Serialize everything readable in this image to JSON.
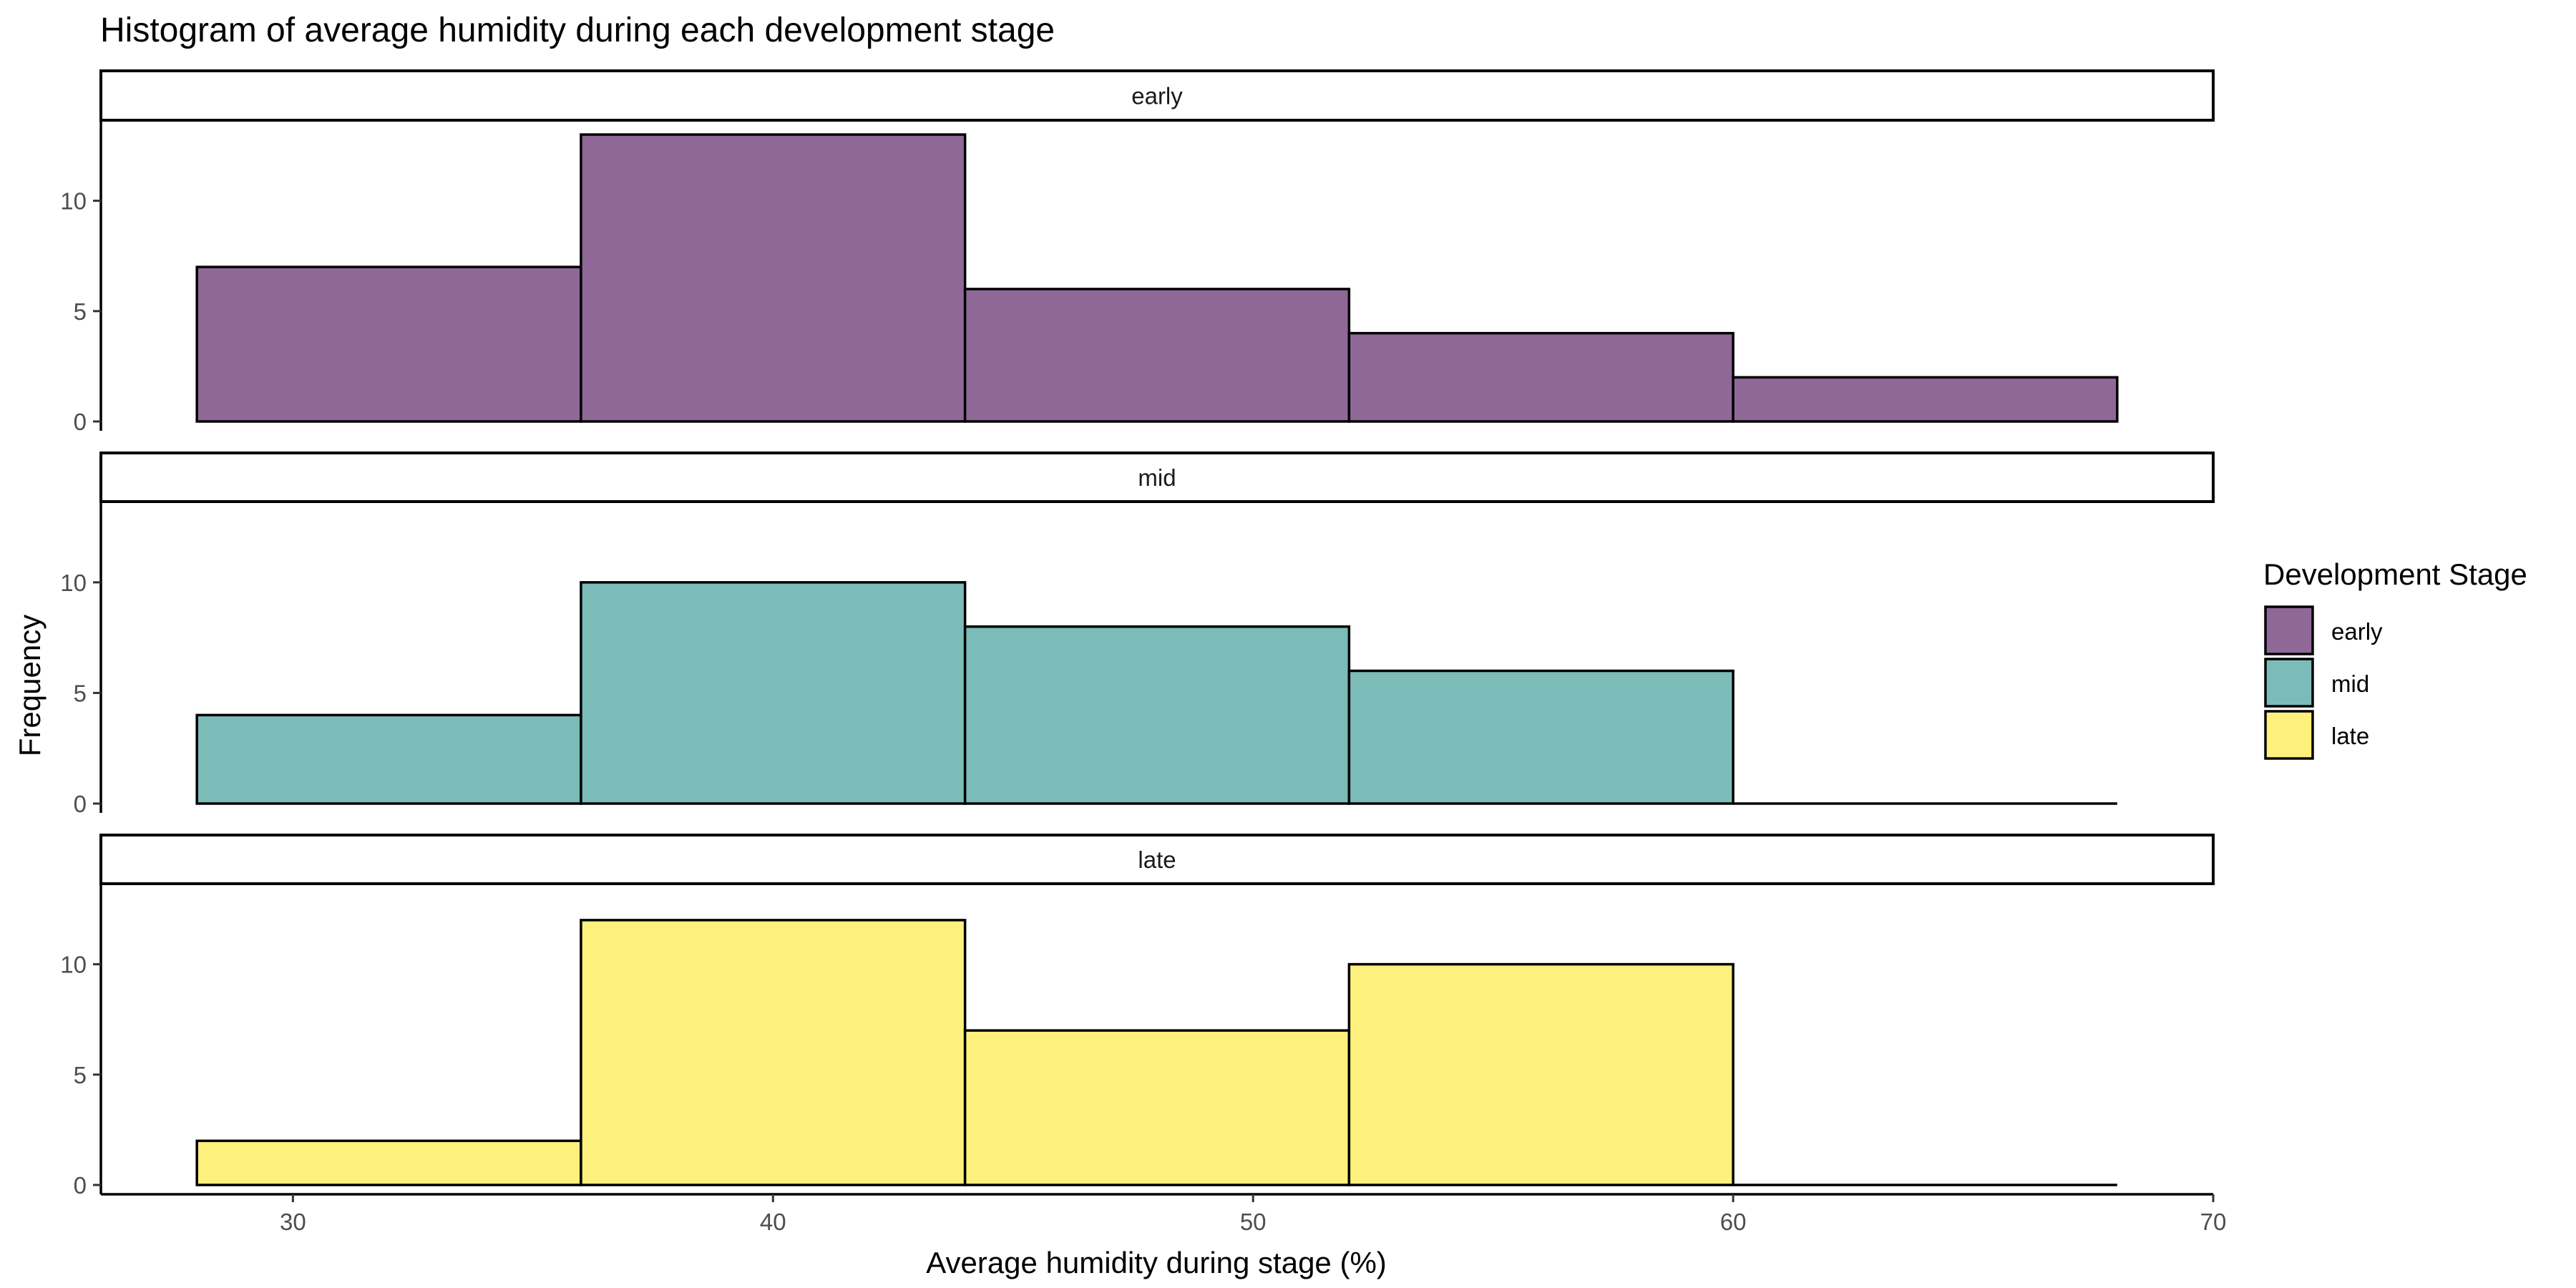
{
  "chart_data": {
    "type": "bar",
    "title": "Histogram of average humidity during each development stage",
    "xlabel": "Average humidity during stage (%)",
    "ylabel": "Frequency",
    "xlim": [
      26,
      70
    ],
    "ylim": [
      0,
      13.65
    ],
    "x_ticks": [
      30,
      40,
      50,
      60,
      70
    ],
    "y_ticks": [
      0,
      5,
      10
    ],
    "bin_edges": [
      28,
      36,
      44,
      52,
      60,
      68
    ],
    "grid": false,
    "legend": {
      "title": "Development Stage",
      "placement": "right",
      "entries": [
        {
          "label": "early",
          "color": "#8F6897"
        },
        {
          "label": "mid",
          "color": "#7BBCB9"
        },
        {
          "label": "late",
          "color": "#FDF07D"
        }
      ]
    },
    "series": [
      {
        "name": "early",
        "color": "#8F6897",
        "values": [
          7,
          13,
          6,
          4,
          2
        ]
      },
      {
        "name": "mid",
        "color": "#7BBCB9",
        "values": [
          4,
          10,
          8,
          6,
          0
        ]
      },
      {
        "name": "late",
        "color": "#FDF07D",
        "values": [
          2,
          12,
          7,
          10,
          0
        ]
      }
    ]
  }
}
